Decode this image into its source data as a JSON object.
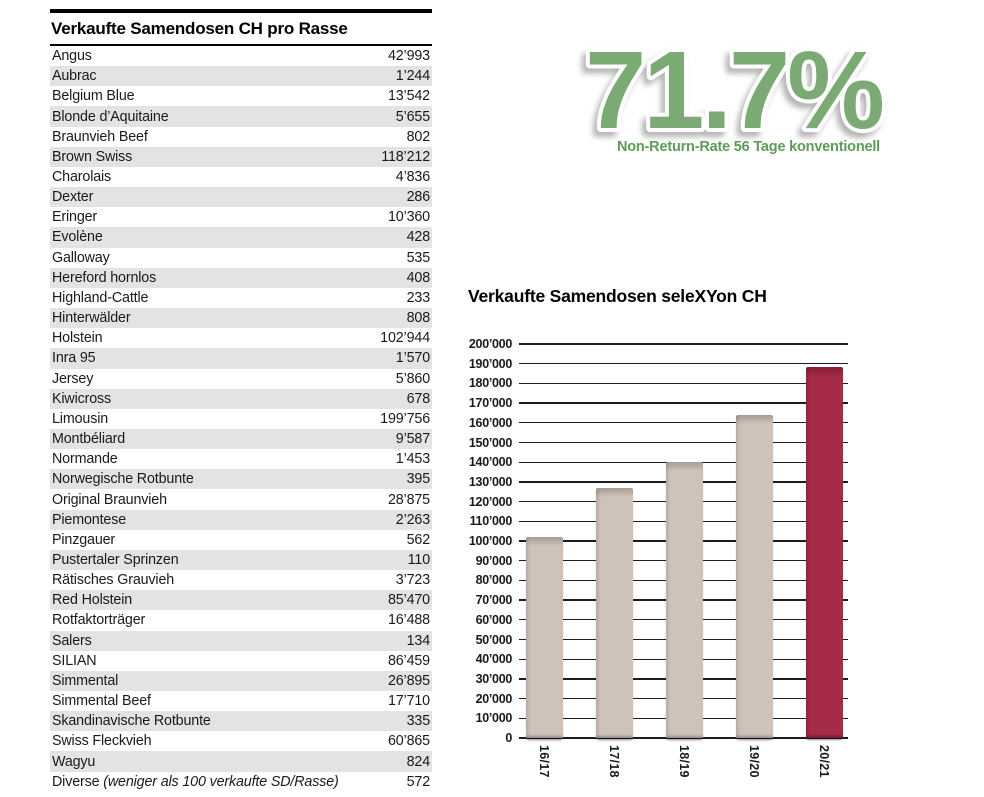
{
  "table": {
    "title": "Verkaufte Samendosen CH pro Rasse",
    "stripe_color": "#e4e3e2",
    "rows": [
      {
        "name": "Angus",
        "value": "42’993"
      },
      {
        "name": "Aubrac",
        "value": "1’244"
      },
      {
        "name": "Belgium Blue",
        "value": "13’542"
      },
      {
        "name": "Blonde d’Aquitaine",
        "value": "5’655"
      },
      {
        "name": "Braunvieh Beef",
        "value": "802"
      },
      {
        "name": "Brown Swiss",
        "value": "118’212"
      },
      {
        "name": "Charolais",
        "value": "4’836"
      },
      {
        "name": "Dexter",
        "value": "286"
      },
      {
        "name": "Eringer",
        "value": "10’360"
      },
      {
        "name": "Evolène",
        "value": "428"
      },
      {
        "name": "Galloway",
        "value": "535"
      },
      {
        "name": "Hereford hornlos",
        "value": "408"
      },
      {
        "name": "Highland-Cattle",
        "value": "233"
      },
      {
        "name": "Hinterwälder",
        "value": "808"
      },
      {
        "name": "Holstein",
        "value": "102’944"
      },
      {
        "name": "Inra 95",
        "value": "1’570"
      },
      {
        "name": "Jersey",
        "value": "5’860"
      },
      {
        "name": "Kiwicross",
        "value": "678"
      },
      {
        "name": "Limousin",
        "value": "199’756"
      },
      {
        "name": "Montbéliard",
        "value": "9’587"
      },
      {
        "name": "Normande",
        "value": "1’453"
      },
      {
        "name": "Norwegische Rotbunte",
        "value": "395"
      },
      {
        "name": "Original Braunvieh",
        "value": "28’875"
      },
      {
        "name": "Piemontese",
        "value": "2’263"
      },
      {
        "name": "Pinzgauer",
        "value": "562"
      },
      {
        "name": "Pustertaler Sprinzen",
        "value": "110"
      },
      {
        "name": "Rätisches Grauvieh",
        "value": "3’723"
      },
      {
        "name": "Red Holstein",
        "value": "85’470"
      },
      {
        "name": "Rotfaktorträger",
        "value": "16’488"
      },
      {
        "name": "Salers",
        "value": "134"
      },
      {
        "name": "SILIAN",
        "value": "86’459"
      },
      {
        "name": "Simmental",
        "value": "26’895"
      },
      {
        "name": "Simmental Beef",
        "value": "17’710"
      },
      {
        "name": "Skandinavische Rotbunte",
        "value": "335"
      },
      {
        "name": "Swiss Fleckvieh",
        "value": "60’865"
      },
      {
        "name": "Wagyu",
        "value": "824"
      },
      {
        "name": "Diverse",
        "note": "(weniger als 100 verkaufte SD/Rasse)",
        "value": "572"
      }
    ]
  },
  "highlight": {
    "value": "71.7%",
    "caption": "Non-Return-Rate 56 Tage konventionell",
    "number_color": "#7baa74",
    "caption_color": "#5c9c56"
  },
  "chart_data": {
    "type": "bar",
    "title": "Verkaufte Samendosen seleXYon CH",
    "categories": [
      "16/17",
      "17/18",
      "18/19",
      "19/20",
      "20/21"
    ],
    "values": [
      102000,
      127000,
      140000,
      164000,
      188500
    ],
    "ylim": [
      0,
      200000
    ],
    "ytick_step": 10000,
    "ytick_labels": [
      "0",
      "10’000",
      "20’000",
      "30’000",
      "40’000",
      "50’000",
      "60’000",
      "70’000",
      "80’000",
      "90’000",
      "100’000",
      "110’000",
      "120’000",
      "130’000",
      "140’000",
      "150’000",
      "160’000",
      "170’000",
      "180’000",
      "190’000",
      "200’000"
    ],
    "grid": true,
    "legend": false,
    "xlabel": "",
    "ylabel": "",
    "bar_color": "#cfc2b9",
    "bar_top_color": "#b4a79d",
    "bar_bottom_color": "#a2968b",
    "highlight_bar_index": 4,
    "highlight_bar_color": "#a52b47",
    "highlight_bar_top_color": "#8e2138",
    "highlight_bar_bottom_color": "#7c1c32"
  }
}
